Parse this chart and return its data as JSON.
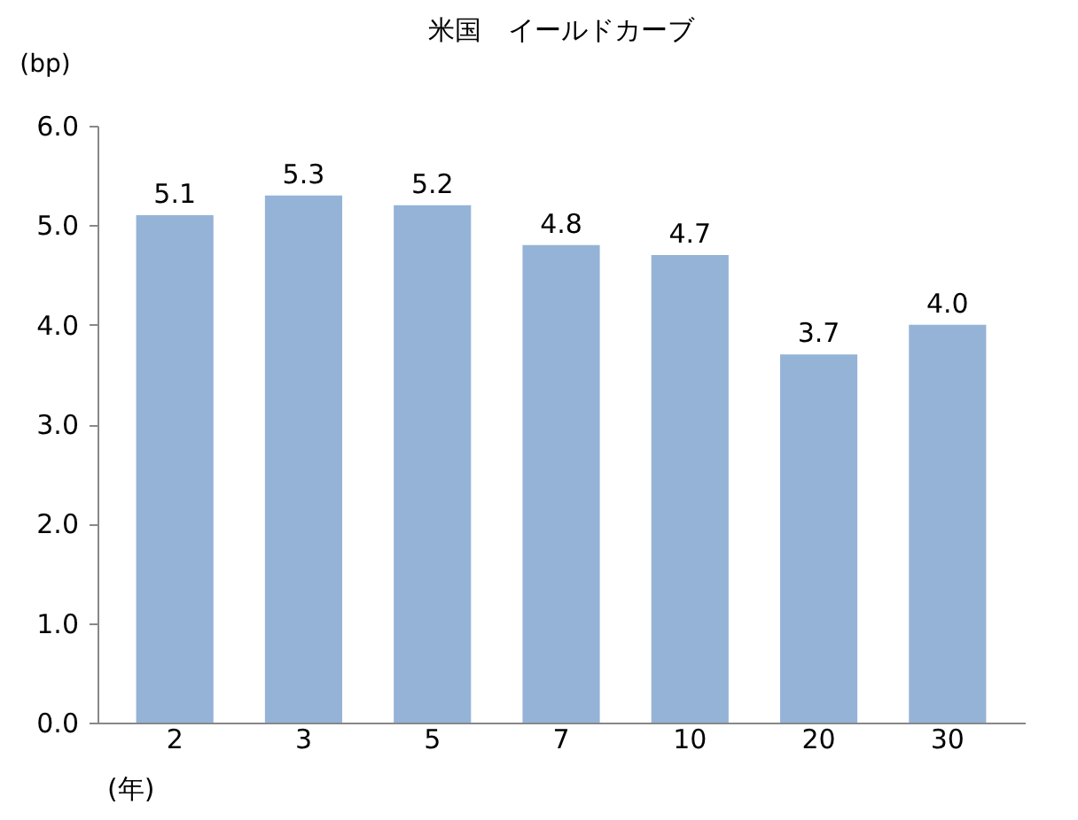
{
  "chart_data": {
    "type": "bar",
    "title": "米国　イールドカーブ",
    "ylabel": "(bp)",
    "xlabel": "(年)",
    "categories": [
      "2",
      "3",
      "5",
      "7",
      "10",
      "20",
      "30"
    ],
    "values": [
      5.1,
      5.3,
      5.2,
      4.8,
      4.7,
      3.7,
      4.0
    ],
    "color": "#95b3d7",
    "ylim": [
      0,
      6
    ],
    "yticks": [
      {
        "value": 0,
        "label": "0.0"
      },
      {
        "value": 1,
        "label": "1.0"
      },
      {
        "value": 2,
        "label": "2.0"
      },
      {
        "value": 3,
        "label": "3.0"
      },
      {
        "value": 4,
        "label": "4.0"
      },
      {
        "value": 5,
        "label": "5.0"
      },
      {
        "value": 6,
        "label": "6.0"
      }
    ],
    "value_labels": [
      "5.1",
      "5.3",
      "5.2",
      "4.8",
      "4.7",
      "3.7",
      "4.0"
    ],
    "grid": false
  }
}
